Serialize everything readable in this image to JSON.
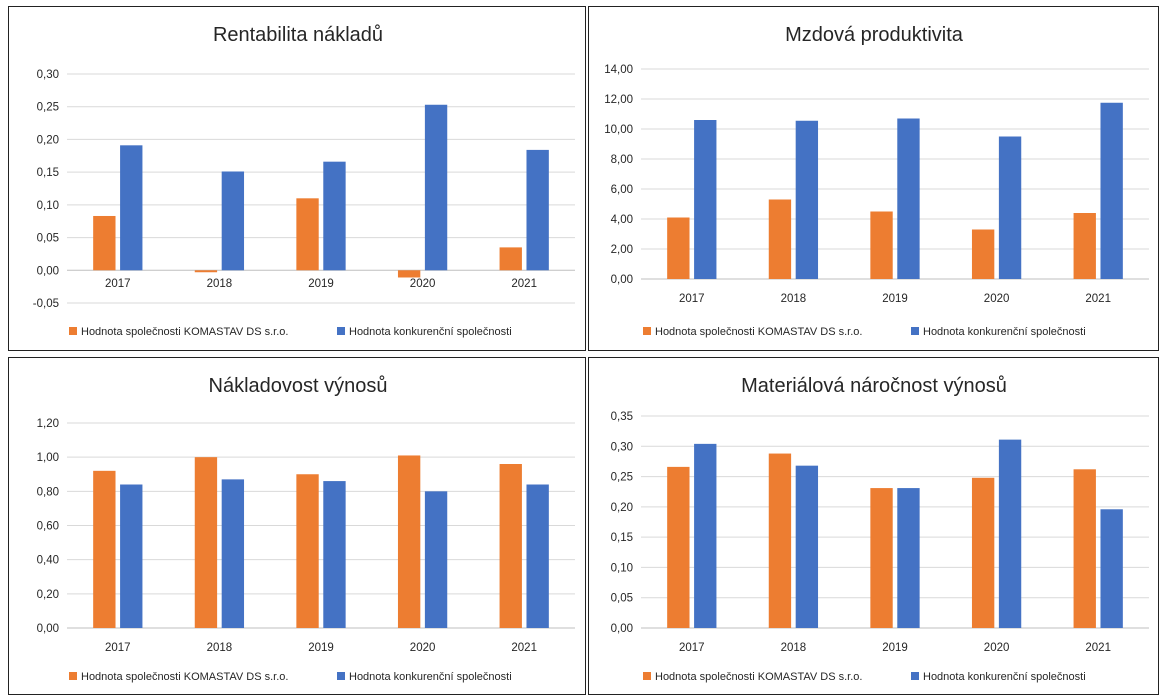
{
  "colors": {
    "company": "#ED7D31",
    "competitor": "#4472C4",
    "grid": "#D9D9D9",
    "text": "#262626"
  },
  "charts": [
    {
      "title": "Rentabilita nákladů",
      "categories": [
        "2017",
        "2018",
        "2019",
        "2020",
        "2021"
      ],
      "yticks": [
        "0,30",
        "0,25",
        "0,20",
        "0,15",
        "0,10",
        "0,05",
        "0,00",
        "-0,05"
      ],
      "legend": [
        "Hodnota společnosti KOMASTAV DS s.r.o.",
        "Hodnota konkurenční společnosti"
      ]
    },
    {
      "title": "Mzdová produktivita",
      "categories": [
        "2017",
        "2018",
        "2019",
        "2020",
        "2021"
      ],
      "yticks": [
        "14,00",
        "12,00",
        "10,00",
        "8,00",
        "6,00",
        "4,00",
        "2,00",
        "0,00"
      ],
      "legend": [
        "Hodnota společnosti KOMASTAV DS s.r.o.",
        "Hodnota konkurenční společnosti"
      ]
    },
    {
      "title": "Nákladovost výnosů",
      "categories": [
        "2017",
        "2018",
        "2019",
        "2020",
        "2021"
      ],
      "yticks": [
        "1,20",
        "1,00",
        "0,80",
        "0,60",
        "0,40",
        "0,20",
        "0,00"
      ],
      "legend": [
        "Hodnota společnosti KOMASTAV DS s.r.o.",
        "Hodnota konkurenční společnosti"
      ]
    },
    {
      "title": "Materiálová náročnost výnosů",
      "categories": [
        "2017",
        "2018",
        "2019",
        "2020",
        "2021"
      ],
      "yticks": [
        "0,35",
        "0,30",
        "0,25",
        "0,20",
        "0,15",
        "0,10",
        "0,05",
        "0,00"
      ],
      "legend": [
        "Hodnota společnosti KOMASTAV DS s.r.o.",
        "Hodnota konkurenční společnosti"
      ]
    }
  ],
  "chart_data": [
    {
      "type": "bar",
      "title": "Rentabilita nákladů",
      "categories": [
        "2017",
        "2018",
        "2019",
        "2020",
        "2021"
      ],
      "series": [
        {
          "name": "Hodnota společnosti KOMASTAV DS s.r.o.",
          "values": [
            0.083,
            -0.003,
            0.11,
            -0.011,
            0.035
          ]
        },
        {
          "name": "Hodnota konkurenční společnosti",
          "values": [
            0.191,
            0.151,
            0.166,
            0.253,
            0.184
          ]
        }
      ],
      "ylim": [
        -0.05,
        0.3
      ],
      "grid": true,
      "legend_position": "bottom"
    },
    {
      "type": "bar",
      "title": "Mzdová produktivita",
      "categories": [
        "2017",
        "2018",
        "2019",
        "2020",
        "2021"
      ],
      "series": [
        {
          "name": "Hodnota společnosti KOMASTAV DS s.r.o.",
          "values": [
            4.1,
            5.3,
            4.5,
            3.3,
            4.4
          ]
        },
        {
          "name": "Hodnota konkurenční společnosti",
          "values": [
            10.6,
            10.55,
            10.7,
            9.5,
            11.75
          ]
        }
      ],
      "ylim": [
        0,
        14
      ],
      "grid": true,
      "legend_position": "bottom"
    },
    {
      "type": "bar",
      "title": "Nákladovost výnosů",
      "categories": [
        "2017",
        "2018",
        "2019",
        "2020",
        "2021"
      ],
      "series": [
        {
          "name": "Hodnota společnosti KOMASTAV DS s.r.o.",
          "values": [
            0.92,
            1.0,
            0.9,
            1.01,
            0.96
          ]
        },
        {
          "name": "Hodnota konkurenční společnosti",
          "values": [
            0.84,
            0.87,
            0.86,
            0.8,
            0.84
          ]
        }
      ],
      "ylim": [
        0,
        1.2
      ],
      "grid": true,
      "legend_position": "bottom"
    },
    {
      "type": "bar",
      "title": "Materiálová náročnost výnosů",
      "categories": [
        "2017",
        "2018",
        "2019",
        "2020",
        "2021"
      ],
      "series": [
        {
          "name": "Hodnota společnosti KOMASTAV DS s.r.o.",
          "values": [
            0.266,
            0.288,
            0.231,
            0.248,
            0.262
          ]
        },
        {
          "name": "Hodnota konkurenční společnosti",
          "values": [
            0.304,
            0.268,
            0.231,
            0.311,
            0.196
          ]
        }
      ],
      "ylim": [
        0,
        0.35
      ],
      "grid": true,
      "legend_position": "bottom"
    }
  ]
}
